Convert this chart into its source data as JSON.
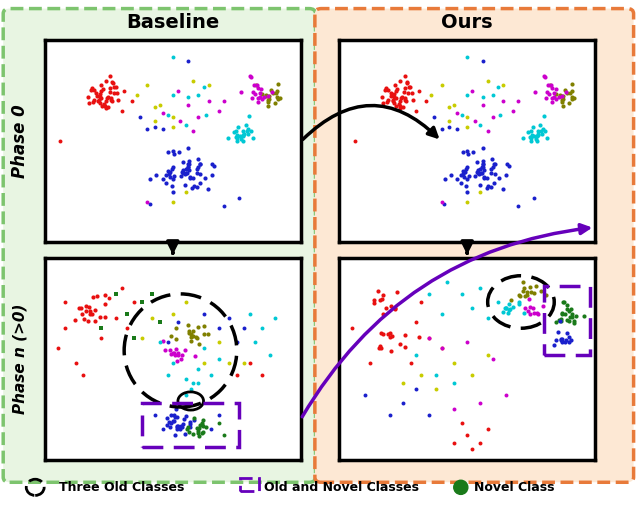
{
  "title_baseline": "Baseline",
  "title_ours": "Ours",
  "phase0_label": "Phase 0",
  "phaseN_label": "Phase n (>0)",
  "legend_old": "Three Old Classes",
  "legend_oldnovel": "Old and Novel Classes",
  "legend_novel": "Novel Class",
  "bg_green": "#e8f5e2",
  "bg_orange": "#fde8d4",
  "border_green": "#7dc46e",
  "border_orange": "#e87a3a",
  "white": "#ffffff",
  "black": "#000000",
  "purple": "#6600bb",
  "RED": "#e81010",
  "BLUE": "#1a20cc",
  "CYAN": "#00c8d4",
  "OLIVE": "#808000",
  "MAGENTA": "#cc00cc",
  "YG": "#c8cc00",
  "GREEN": "#1a7a1a",
  "figw": 6.4,
  "figh": 5.05
}
